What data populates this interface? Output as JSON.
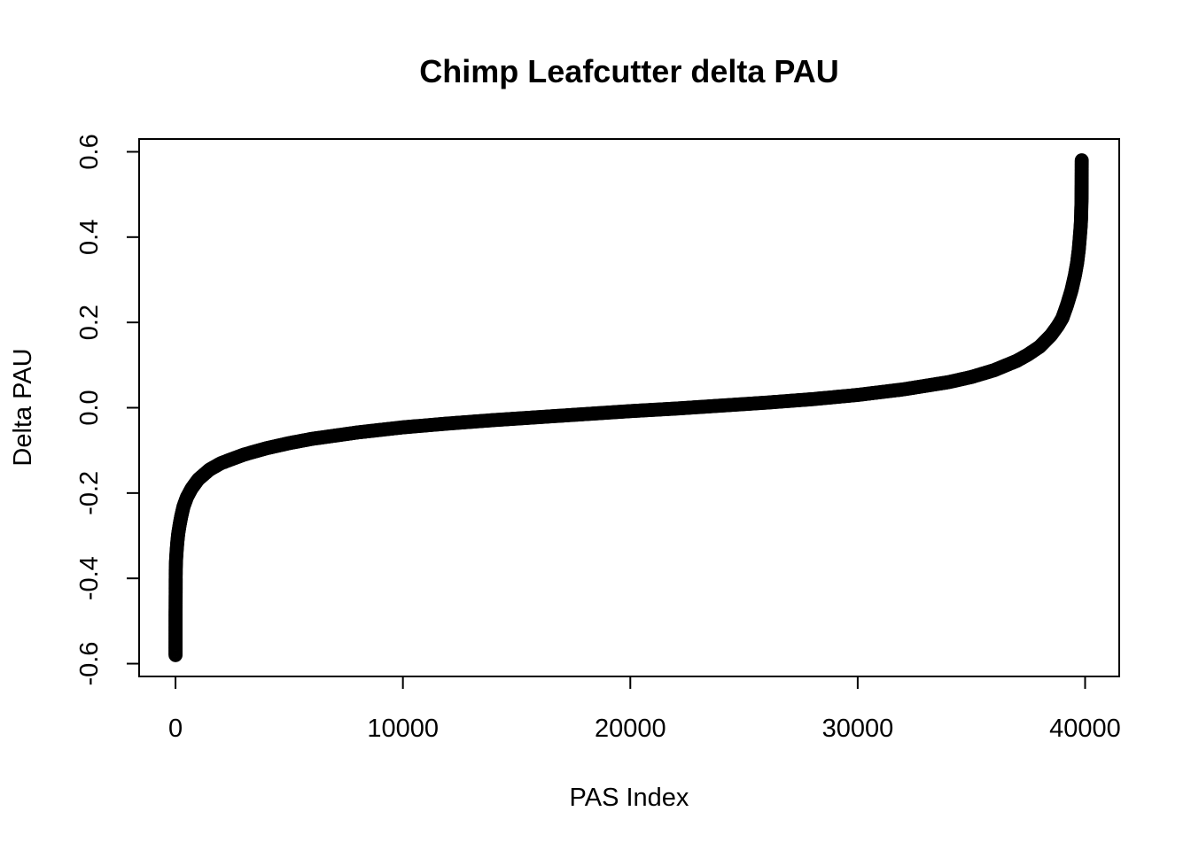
{
  "chart_data": {
    "type": "scatter",
    "title": "Chimp Leafcutter delta PAU",
    "xlabel": "PAS Index",
    "ylabel": "Delta PAU",
    "xlim": [
      -1600,
      41500
    ],
    "ylim": [
      -0.63,
      0.63
    ],
    "x_ticks": [
      0,
      10000,
      20000,
      30000,
      40000
    ],
    "x_tick_labels": [
      "0",
      "10000",
      "20000",
      "30000",
      "40000"
    ],
    "y_ticks": [
      -0.6,
      -0.4,
      -0.2,
      0.0,
      0.2,
      0.4,
      0.6
    ],
    "y_tick_labels": [
      "-0.6",
      "-0.4",
      "-0.2",
      "0.0",
      "0.2",
      "0.4",
      "0.6"
    ],
    "grid": false,
    "legend": "none",
    "marker": "open-circle",
    "color": "#000000",
    "series": [
      {
        "points": [
          [
            1,
            -0.58
          ],
          [
            2,
            -0.512
          ],
          [
            3,
            -0.474
          ],
          [
            4,
            -0.466
          ],
          [
            5,
            -0.455
          ],
          [
            6,
            -0.442
          ],
          [
            7,
            -0.435
          ],
          [
            8,
            -0.4
          ],
          [
            9,
            -0.392
          ],
          [
            10,
            -0.38
          ],
          [
            15,
            -0.372
          ],
          [
            20,
            -0.362
          ],
          [
            30,
            -0.352
          ],
          [
            50,
            -0.335
          ],
          [
            80,
            -0.315
          ],
          [
            120,
            -0.295
          ],
          [
            180,
            -0.275
          ],
          [
            250,
            -0.255
          ],
          [
            350,
            -0.232
          ],
          [
            500,
            -0.21
          ],
          [
            700,
            -0.19
          ],
          [
            1000,
            -0.168
          ],
          [
            1500,
            -0.145
          ],
          [
            2000,
            -0.13
          ],
          [
            3000,
            -0.11
          ],
          [
            4000,
            -0.095
          ],
          [
            5000,
            -0.083
          ],
          [
            6000,
            -0.073
          ],
          [
            8000,
            -0.058
          ],
          [
            10000,
            -0.046
          ],
          [
            12000,
            -0.037
          ],
          [
            14000,
            -0.029
          ],
          [
            16000,
            -0.022
          ],
          [
            18000,
            -0.015
          ],
          [
            20000,
            -0.008
          ],
          [
            22000,
            -0.002
          ],
          [
            24000,
            0.005
          ],
          [
            26000,
            0.012
          ],
          [
            28000,
            0.02
          ],
          [
            30000,
            0.03
          ],
          [
            32000,
            0.043
          ],
          [
            34000,
            0.06
          ],
          [
            35000,
            0.072
          ],
          [
            36000,
            0.088
          ],
          [
            37000,
            0.11
          ],
          [
            37500,
            0.125
          ],
          [
            38000,
            0.143
          ],
          [
            38500,
            0.17
          ],
          [
            38800,
            0.192
          ],
          [
            39000,
            0.21
          ],
          [
            39200,
            0.24
          ],
          [
            39400,
            0.275
          ],
          [
            39550,
            0.31
          ],
          [
            39650,
            0.34
          ],
          [
            39720,
            0.37
          ],
          [
            39760,
            0.395
          ],
          [
            39790,
            0.415
          ],
          [
            39810,
            0.43
          ],
          [
            39820,
            0.44
          ],
          [
            39825,
            0.45
          ],
          [
            39830,
            0.46
          ],
          [
            39835,
            0.472
          ],
          [
            39840,
            0.48
          ],
          [
            39843,
            0.49
          ],
          [
            39846,
            0.515
          ],
          [
            39849,
            0.535
          ],
          [
            39852,
            0.58
          ]
        ]
      }
    ]
  }
}
